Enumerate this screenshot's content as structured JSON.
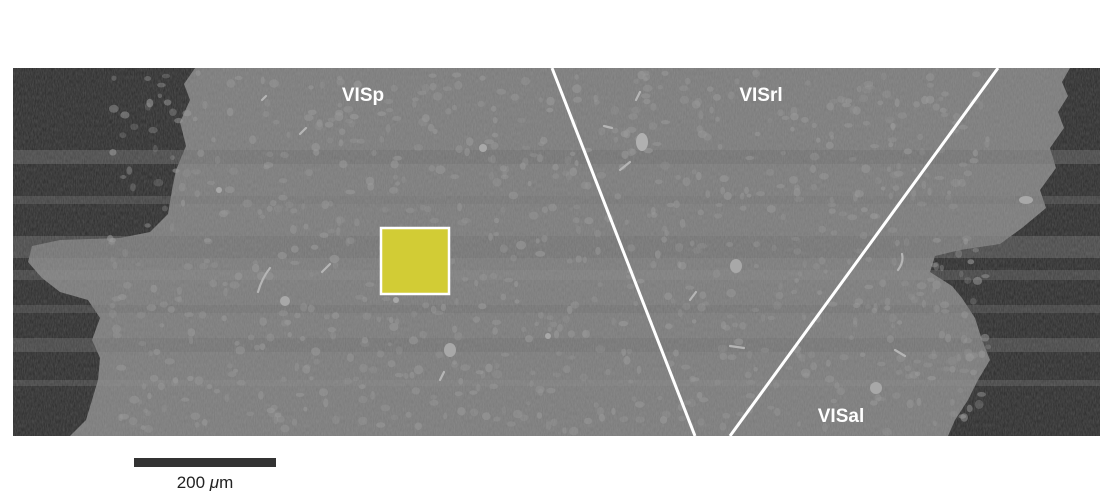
{
  "regions": {
    "visp": "VISp",
    "visrl": "VISrl",
    "visal": "VISal"
  },
  "scale_bar": {
    "value": "200",
    "unit_prefix": "μ",
    "unit": "m"
  },
  "colors": {
    "tissue": "#777777",
    "background_dark": "#2a2a2a",
    "highlight_box": "#d2cc35",
    "boundary_lines": "#ffffff",
    "scale_bar": "#333333"
  }
}
